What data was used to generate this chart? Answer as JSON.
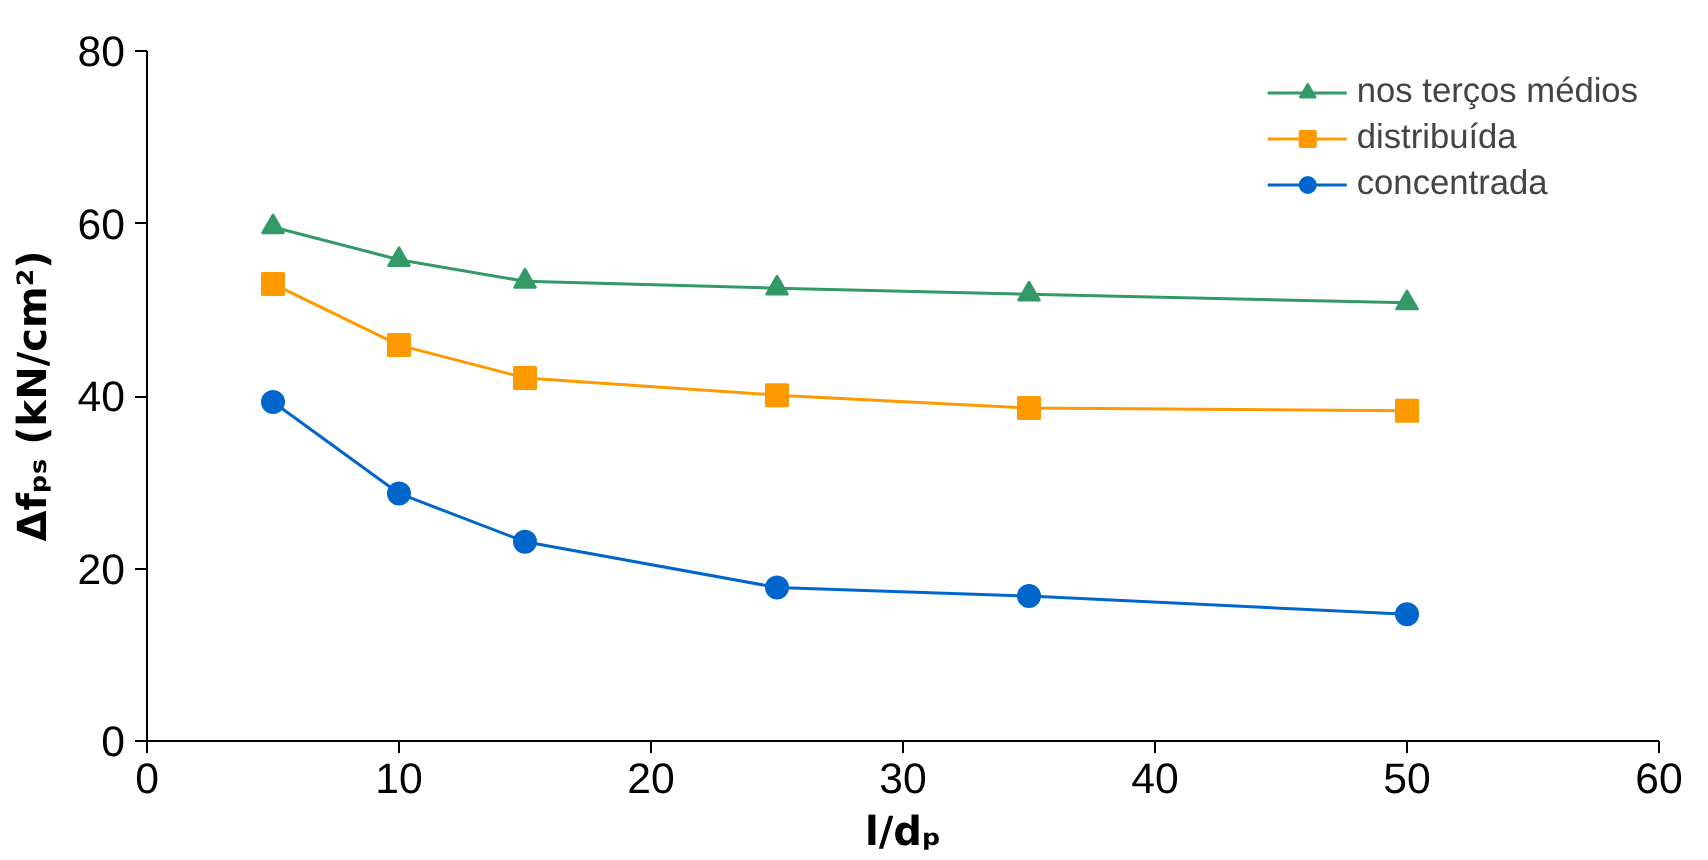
{
  "chart_data": {
    "type": "line",
    "xlabel": "l/dₚ",
    "ylabel": "Δfₚₛ (kN/cm²)",
    "x": [
      5,
      10,
      15,
      25,
      35,
      50
    ],
    "xlim": [
      0,
      60
    ],
    "xticks": [
      0,
      10,
      20,
      30,
      40,
      50,
      60
    ],
    "ylim": [
      0,
      80
    ],
    "yticks": [
      0,
      20,
      40,
      60,
      80
    ],
    "grid": false,
    "legend": "top right",
    "line_style": "solid",
    "series": [
      {
        "name": "nos terços médios",
        "color": "#339966",
        "marker": "triangle",
        "values": [
          59.6,
          55.8,
          53.3,
          52.5,
          51.8,
          50.8
        ]
      },
      {
        "name": "distribuída",
        "color": "#ff9900",
        "marker": "square",
        "values": [
          53.0,
          45.9,
          42.1,
          40.1,
          38.6,
          38.3
        ]
      },
      {
        "name": "concentrada",
        "color": "#0066cc",
        "marker": "circle",
        "values": [
          39.3,
          28.7,
          23.1,
          17.8,
          16.8,
          14.7
        ]
      }
    ]
  }
}
